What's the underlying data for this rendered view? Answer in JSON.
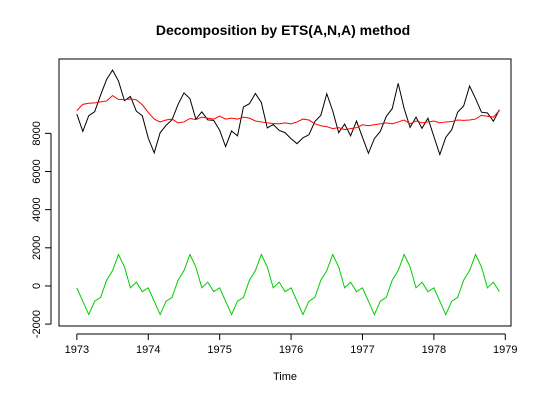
{
  "chart_data": {
    "type": "line",
    "title": "Decomposition by ETS(A,N,A) method",
    "xlabel": "Time",
    "ylabel": "",
    "xlim": [
      1972.75,
      1979.08
    ],
    "ylim": [
      -2100,
      11900
    ],
    "grid": false,
    "x_ticks": [
      1973,
      1974,
      1975,
      1976,
      1977,
      1978,
      1979
    ],
    "y_ticks": [
      -2000,
      0,
      2000,
      4000,
      6000,
      8000
    ],
    "x_start": 1973,
    "x_step": 0.0833333,
    "series": [
      {
        "color": "#000000",
        "values": [
          9007,
          8106,
          8928,
          9137,
          10017,
          10826,
          11317,
          10744,
          9713,
          9938,
          9161,
          8927,
          7750,
          6981,
          8038,
          8422,
          8714,
          9512,
          10120,
          9823,
          8743,
          9129,
          8710,
          8680,
          8162,
          7306,
          8124,
          7870,
          9387,
          9556,
          10093,
          9620,
          8285,
          8466,
          8160,
          8034,
          7717,
          7461,
          7767,
          7925,
          8623,
          8945,
          10078,
          9179,
          8037,
          8488,
          7874,
          8647,
          7792,
          6957,
          7726,
          8106,
          8890,
          9299,
          10625,
          9302,
          8314,
          8850,
          8265,
          8796,
          7836,
          6892,
          7791,
          8192,
          9115,
          9434,
          10484,
          9827,
          9110,
          9070,
          8633,
          9240
        ]
      },
      {
        "color": "#ff0000",
        "values": [
          9200,
          9520,
          9580,
          9600,
          9650,
          9700,
          9980,
          9780,
          9770,
          9800,
          9760,
          9500,
          9100,
          8750,
          8600,
          8700,
          8750,
          8550,
          8600,
          8780,
          8720,
          8850,
          8800,
          8750,
          8900,
          8750,
          8800,
          8750,
          8850,
          8800,
          8650,
          8600,
          8550,
          8520,
          8500,
          8550,
          8500,
          8600,
          8750,
          8700,
          8500,
          8400,
          8350,
          8250,
          8300,
          8200,
          8250,
          8300,
          8450,
          8400,
          8450,
          8500,
          8550,
          8500,
          8600,
          8700,
          8500,
          8650,
          8550,
          8600,
          8650,
          8550,
          8600,
          8620,
          8700,
          8680,
          8700,
          8750,
          8950,
          8900,
          8850,
          9200
        ]
      },
      {
        "color": "#00cc00",
        "values": [
          -100,
          -800,
          -1500,
          -800,
          -600,
          300,
          800,
          1650,
          1000,
          -100,
          200,
          -300,
          -100,
          -800,
          -1500,
          -800,
          -600,
          300,
          800,
          1650,
          1000,
          -100,
          200,
          -300,
          -100,
          -800,
          -1500,
          -800,
          -600,
          300,
          800,
          1650,
          1000,
          -100,
          200,
          -300,
          -100,
          -800,
          -1500,
          -800,
          -600,
          300,
          800,
          1650,
          1000,
          -100,
          200,
          -300,
          -100,
          -800,
          -1500,
          -800,
          -600,
          300,
          800,
          1650,
          1000,
          -100,
          200,
          -300,
          -100,
          -800,
          -1500,
          -800,
          -600,
          300,
          800,
          1650,
          1000,
          -100,
          200,
          -300
        ]
      }
    ]
  }
}
